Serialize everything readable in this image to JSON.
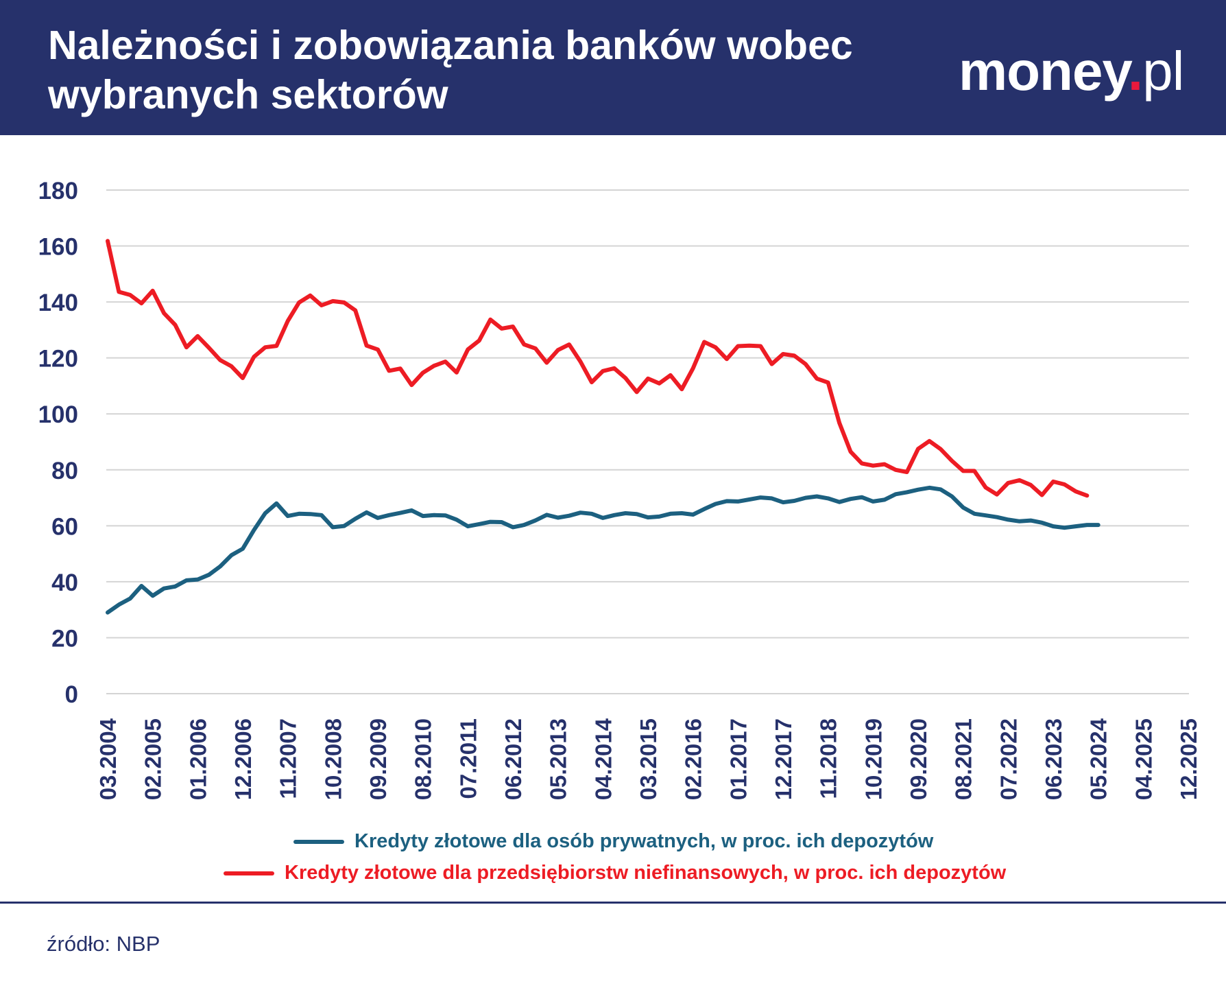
{
  "header": {
    "title_line1": "Należności i zobowiązania banków wobec",
    "title_line2": "wybranych sektorów",
    "logo_main": "money",
    "logo_dot": ".",
    "logo_tld": "pl"
  },
  "colors": {
    "header_bg": "#26316b",
    "text_navy": "#26316b",
    "series_private": "#1c6080",
    "series_enterprise": "#ed1c24",
    "logo_dot": "#e8193c",
    "grid": "#d4d4d4"
  },
  "source": "źródło: NBP",
  "chart_data": {
    "type": "line",
    "ylim": [
      0,
      180
    ],
    "yticks": [
      0,
      20,
      40,
      60,
      80,
      100,
      120,
      140,
      160,
      180
    ],
    "grid": "horizontal",
    "legend_position": "bottom",
    "xticks": [
      "03.2004",
      "02.2005",
      "01.2006",
      "12.2006",
      "11.2007",
      "10.2008",
      "09.2009",
      "08.2010",
      "07.2011",
      "06.2012",
      "05.2013",
      "04.2014",
      "03.2015",
      "02.2016",
      "01.2017",
      "12.2017",
      "11.2018",
      "10.2019",
      "09.2020",
      "08.2021",
      "07.2022",
      "06.2023",
      "05.2024",
      "04.2025",
      "12.2025"
    ],
    "series": [
      {
        "name": "Kredyty złotowe dla osób prywatnych, w proc. ich depozytów",
        "color": "#1c6080",
        "values": [
          [
            0,
            29.0
          ],
          [
            0.25,
            31.8
          ],
          [
            0.5,
            34.0
          ],
          [
            0.75,
            38.5
          ],
          [
            1,
            35.0
          ],
          [
            1.25,
            37.6
          ],
          [
            1.5,
            38.3
          ],
          [
            1.75,
            40.5
          ],
          [
            2,
            40.8
          ],
          [
            2.25,
            42.5
          ],
          [
            2.5,
            45.5
          ],
          [
            2.75,
            49.5
          ],
          [
            3,
            51.8
          ],
          [
            3.25,
            58.5
          ],
          [
            3.5,
            64.5
          ],
          [
            3.75,
            68.0
          ],
          [
            4,
            63.5
          ],
          [
            4.25,
            64.3
          ],
          [
            4.5,
            64.2
          ],
          [
            4.75,
            63.8
          ],
          [
            5,
            59.5
          ],
          [
            5.25,
            59.9
          ],
          [
            5.5,
            62.5
          ],
          [
            5.75,
            64.8
          ],
          [
            6,
            62.8
          ],
          [
            6.25,
            63.8
          ],
          [
            6.5,
            64.6
          ],
          [
            6.75,
            65.5
          ],
          [
            7,
            63.5
          ],
          [
            7.25,
            63.8
          ],
          [
            7.5,
            63.7
          ],
          [
            7.75,
            62.2
          ],
          [
            8,
            59.8
          ],
          [
            8.25,
            60.6
          ],
          [
            8.5,
            61.4
          ],
          [
            8.75,
            61.3
          ],
          [
            9,
            59.5
          ],
          [
            9.25,
            60.3
          ],
          [
            9.5,
            61.9
          ],
          [
            9.75,
            63.9
          ],
          [
            10,
            62.9
          ],
          [
            10.25,
            63.6
          ],
          [
            10.5,
            64.7
          ],
          [
            10.75,
            64.3
          ],
          [
            11,
            62.8
          ],
          [
            11.25,
            63.8
          ],
          [
            11.5,
            64.5
          ],
          [
            11.75,
            64.2
          ],
          [
            12,
            63.0
          ],
          [
            12.25,
            63.3
          ],
          [
            12.5,
            64.3
          ],
          [
            12.75,
            64.5
          ],
          [
            13,
            64.0
          ],
          [
            13.25,
            66.0
          ],
          [
            13.5,
            67.8
          ],
          [
            13.75,
            68.8
          ],
          [
            14,
            68.7
          ],
          [
            14.25,
            69.4
          ],
          [
            14.5,
            70.1
          ],
          [
            14.75,
            69.8
          ],
          [
            15,
            68.4
          ],
          [
            15.25,
            68.9
          ],
          [
            15.5,
            70.0
          ],
          [
            15.75,
            70.5
          ],
          [
            16,
            69.8
          ],
          [
            16.25,
            68.5
          ],
          [
            16.5,
            69.6
          ],
          [
            16.75,
            70.2
          ],
          [
            17,
            68.7
          ],
          [
            17.25,
            69.3
          ],
          [
            17.5,
            71.3
          ],
          [
            17.75,
            72.0
          ],
          [
            18,
            72.9
          ],
          [
            18.25,
            73.6
          ],
          [
            18.5,
            73.0
          ],
          [
            18.75,
            70.5
          ],
          [
            19,
            66.5
          ],
          [
            19.25,
            64.3
          ],
          [
            19.5,
            63.7
          ],
          [
            19.75,
            63.1
          ],
          [
            20,
            62.2
          ],
          [
            20.25,
            61.6
          ],
          [
            20.5,
            61.9
          ],
          [
            20.75,
            61.1
          ],
          [
            21,
            59.8
          ],
          [
            21.25,
            59.3
          ],
          [
            21.5,
            59.8
          ],
          [
            21.75,
            60.3
          ],
          [
            22,
            60.3
          ]
        ]
      },
      {
        "name": "Kredyty złotowe dla przedsiębiorstw niefinansowych, w proc. ich depozytów",
        "color": "#ed1c24",
        "values": [
          [
            0,
            161.8
          ],
          [
            0.25,
            143.6
          ],
          [
            0.5,
            142.5
          ],
          [
            0.75,
            139.5
          ],
          [
            1,
            144.0
          ],
          [
            1.25,
            136.0
          ],
          [
            1.5,
            131.8
          ],
          [
            1.75,
            123.8
          ],
          [
            2,
            127.8
          ],
          [
            2.25,
            123.6
          ],
          [
            2.5,
            119.2
          ],
          [
            2.75,
            117.0
          ],
          [
            3,
            112.8
          ],
          [
            3.25,
            120.4
          ],
          [
            3.5,
            123.8
          ],
          [
            3.75,
            124.3
          ],
          [
            4,
            133.2
          ],
          [
            4.25,
            139.8
          ],
          [
            4.5,
            142.3
          ],
          [
            4.75,
            138.8
          ],
          [
            5,
            140.3
          ],
          [
            5.25,
            139.8
          ],
          [
            5.5,
            137.0
          ],
          [
            5.75,
            124.4
          ],
          [
            6,
            123.0
          ],
          [
            6.25,
            115.4
          ],
          [
            6.5,
            116.2
          ],
          [
            6.75,
            110.3
          ],
          [
            7,
            114.7
          ],
          [
            7.25,
            117.2
          ],
          [
            7.5,
            118.7
          ],
          [
            7.75,
            114.8
          ],
          [
            8,
            123.0
          ],
          [
            8.25,
            126.2
          ],
          [
            8.5,
            133.7
          ],
          [
            8.75,
            130.5
          ],
          [
            9,
            131.2
          ],
          [
            9.25,
            124.8
          ],
          [
            9.5,
            123.4
          ],
          [
            9.75,
            118.3
          ],
          [
            10,
            122.8
          ],
          [
            10.25,
            124.8
          ],
          [
            10.5,
            118.7
          ],
          [
            10.75,
            111.3
          ],
          [
            11,
            115.3
          ],
          [
            11.25,
            116.3
          ],
          [
            11.5,
            112.8
          ],
          [
            11.75,
            107.8
          ],
          [
            12,
            112.6
          ],
          [
            12.25,
            110.9
          ],
          [
            12.5,
            113.8
          ],
          [
            12.75,
            108.8
          ],
          [
            13,
            116.3
          ],
          [
            13.25,
            125.7
          ],
          [
            13.5,
            123.8
          ],
          [
            13.75,
            119.6
          ],
          [
            14,
            124.2
          ],
          [
            14.25,
            124.4
          ],
          [
            14.5,
            124.2
          ],
          [
            14.75,
            117.8
          ],
          [
            15,
            121.4
          ],
          [
            15.25,
            120.8
          ],
          [
            15.5,
            117.8
          ],
          [
            15.75,
            112.6
          ],
          [
            16,
            111.2
          ],
          [
            16.25,
            96.8
          ],
          [
            16.5,
            86.5
          ],
          [
            16.75,
            82.3
          ],
          [
            17,
            81.5
          ],
          [
            17.25,
            82.0
          ],
          [
            17.5,
            80.0
          ],
          [
            17.75,
            79.2
          ],
          [
            18,
            87.5
          ],
          [
            18.25,
            90.3
          ],
          [
            18.5,
            87.4
          ],
          [
            18.75,
            83.2
          ],
          [
            19,
            79.6
          ],
          [
            19.25,
            79.6
          ],
          [
            19.5,
            73.7
          ],
          [
            19.75,
            71.2
          ],
          [
            20,
            75.3
          ],
          [
            20.25,
            76.3
          ],
          [
            20.5,
            74.6
          ],
          [
            20.75,
            71.0
          ],
          [
            21,
            75.8
          ],
          [
            21.25,
            74.8
          ],
          [
            21.5,
            72.3
          ],
          [
            21.75,
            70.8
          ]
        ]
      }
    ]
  }
}
